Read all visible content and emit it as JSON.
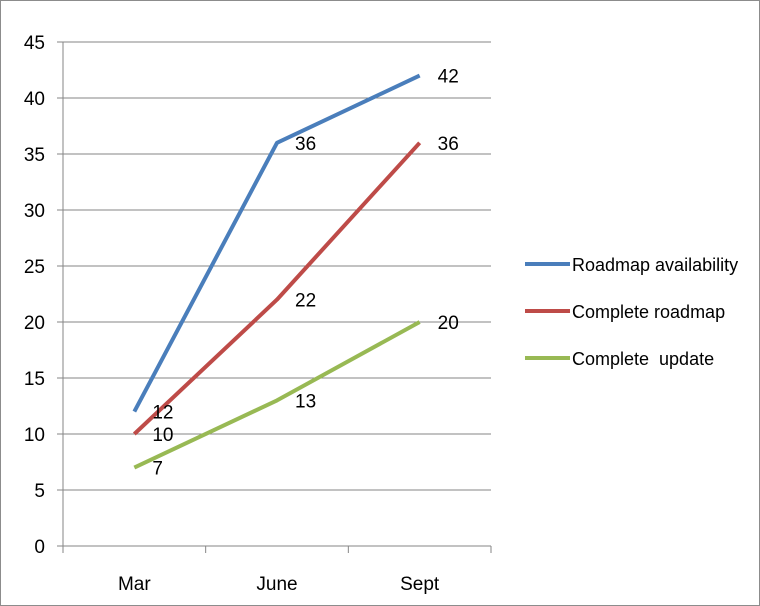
{
  "chart_data": {
    "type": "line",
    "title": "",
    "xlabel": "",
    "ylabel": "",
    "categories": [
      "Mar",
      "June",
      "Sept"
    ],
    "ylim": [
      0,
      45
    ],
    "yticks": [
      0,
      5,
      10,
      15,
      20,
      25,
      30,
      35,
      40,
      45
    ],
    "grid": true,
    "legend_position": "right",
    "data_labels": true,
    "series": [
      {
        "name": "Roadmap availability",
        "values": [
          12,
          36,
          42
        ],
        "color": "#4a7ebb"
      },
      {
        "name": "Complete roadmap",
        "values": [
          10,
          22,
          36
        ],
        "color": "#be4b48"
      },
      {
        "name": "Complete  update",
        "values": [
          7,
          13,
          20
        ],
        "color": "#98b954"
      }
    ]
  }
}
